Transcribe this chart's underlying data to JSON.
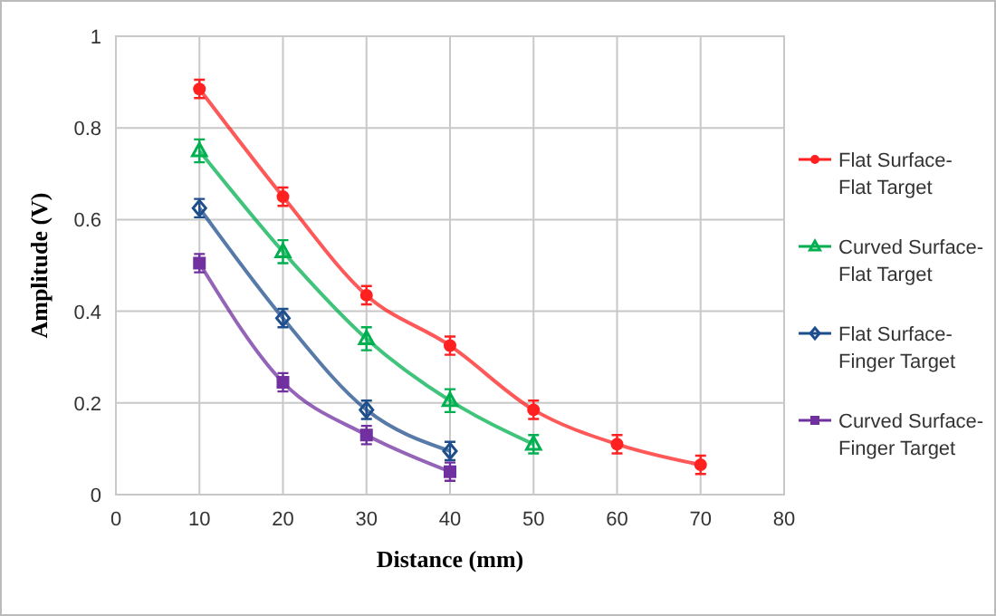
{
  "chart_data": {
    "type": "line",
    "xlabel": "Distance (mm)",
    "ylabel": "Amplitude (V)",
    "xlim": [
      0,
      80
    ],
    "xticks": [
      0,
      10,
      20,
      30,
      40,
      50,
      60,
      70,
      80
    ],
    "ylim": [
      0,
      1
    ],
    "yticks": [
      0,
      0.2,
      0.4,
      0.6,
      0.8,
      1
    ],
    "grid": true,
    "legend": "right",
    "line_style": "solid",
    "series": [
      {
        "name": "Flat Surface-Flat Target",
        "color": "#ff2020",
        "marker": "circle",
        "x": [
          10,
          20,
          30,
          40,
          50,
          60,
          70
        ],
        "values": [
          0.885,
          0.65,
          0.435,
          0.325,
          0.185,
          0.11,
          0.065
        ],
        "errors": [
          0.02,
          0.02,
          0.02,
          0.02,
          0.02,
          0.02,
          0.02
        ]
      },
      {
        "name": "Curved Surface-Flat Target",
        "color": "#00b050",
        "marker": "triangle",
        "x": [
          10,
          20,
          30,
          40,
          50
        ],
        "values": [
          0.75,
          0.53,
          0.34,
          0.205,
          0.11
        ],
        "errors": [
          0.025,
          0.025,
          0.025,
          0.025,
          0.02
        ]
      },
      {
        "name": "Flat Surface-Finger Target",
        "color": "#1f4e8c",
        "marker": "diamond",
        "x": [
          10,
          20,
          30,
          40
        ],
        "values": [
          0.625,
          0.385,
          0.185,
          0.095
        ],
        "errors": [
          0.02,
          0.02,
          0.02,
          0.02
        ]
      },
      {
        "name": "Curved Surface-Finger Target",
        "color": "#7030a0",
        "marker": "square",
        "x": [
          10,
          20,
          30,
          40
        ],
        "values": [
          0.505,
          0.245,
          0.13,
          0.05
        ],
        "errors": [
          0.02,
          0.02,
          0.02,
          0.02
        ]
      }
    ]
  }
}
